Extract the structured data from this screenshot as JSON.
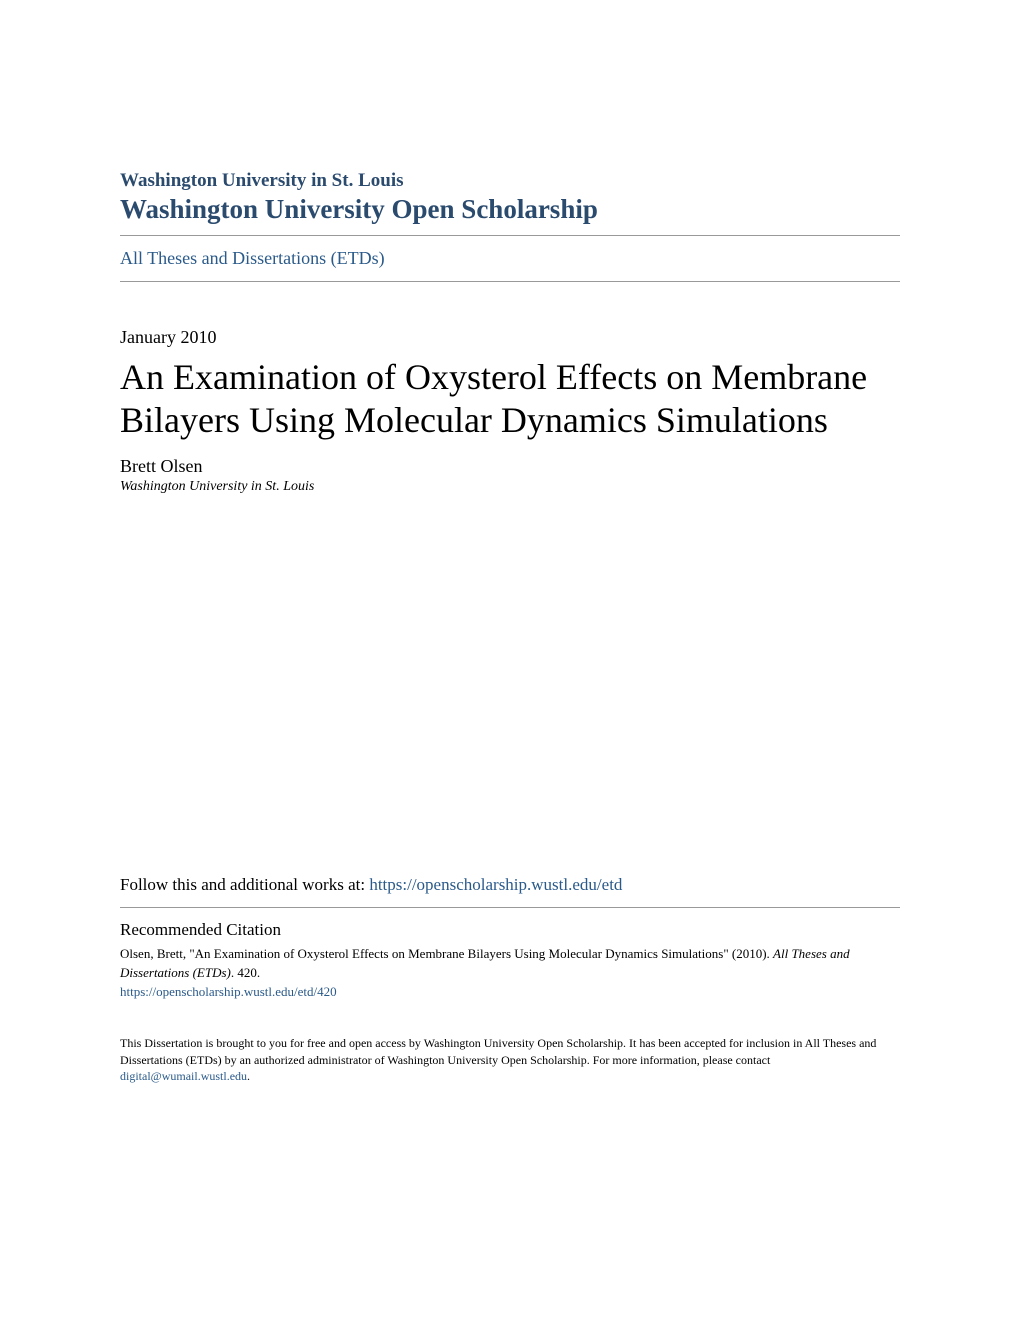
{
  "header": {
    "institution": "Washington University in St. Louis",
    "repository": "Washington University Open Scholarship"
  },
  "breadcrumb": {
    "collection": "All Theses and Dissertations (ETDs)"
  },
  "document": {
    "date": "January 2010",
    "title": "An Examination of Oxysterol Effects on Membrane Bilayers Using Molecular Dynamics Simulations",
    "author": "Brett Olsen",
    "affiliation": "Washington University in St. Louis"
  },
  "follow": {
    "label": "Follow this and additional works at: ",
    "url": "https://openscholarship.wustl.edu/etd"
  },
  "citation": {
    "heading": "Recommended Citation",
    "text_part1": "Olsen, Brett, \"An Examination of Oxysterol Effects on Membrane Bilayers Using Molecular Dynamics Simulations\" (2010). ",
    "text_italic": "All Theses and Dissertations (ETDs)",
    "text_part2": ". 420.",
    "link": "https://openscholarship.wustl.edu/etd/420"
  },
  "footer": {
    "text_part1": "This Dissertation is brought to you for free and open access by Washington University Open Scholarship. It has been accepted for inclusion in All Theses and Dissertations (ETDs) by an authorized administrator of Washington University Open Scholarship. For more information, please contact ",
    "contact_link": "digital@wumail.wustl.edu",
    "text_part2": "."
  },
  "colors": {
    "link": "#2a5a8a",
    "header": "#2a4a6e",
    "text": "#000000",
    "divider": "#999999",
    "background": "#ffffff"
  }
}
